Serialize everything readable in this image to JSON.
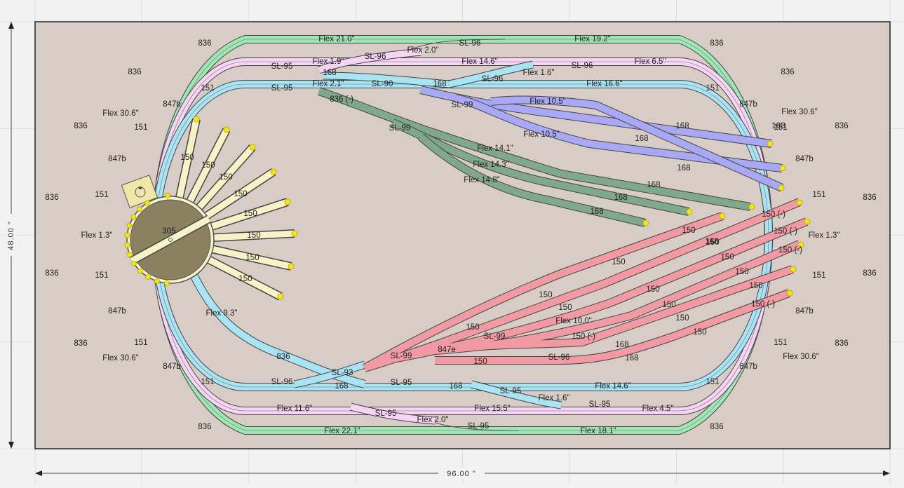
{
  "dimensions": {
    "width": "96.00 \"",
    "height": "48.00 \""
  },
  "colors": {
    "background": "#f2f2f2",
    "gridline": "#dcdcdc",
    "board": "#d8ccc6",
    "outer_loop": "#9ee6b3",
    "middle_loop": "#f7d4f3",
    "inner_loop": "#a9e4f4",
    "blue_yard": "#a8a8f4",
    "green_yard": "#7fa88d",
    "red_yard": "#f29aa4",
    "turntable_tracks": "#f6f3c6",
    "turntable": "#8b8060",
    "track_end": "#f2e51a"
  },
  "labels": {
    "outer_top": [
      "836",
      "Flex 21.0\"",
      "SL-96",
      "Flex 19.2\"",
      "836"
    ],
    "outer_left": [
      "836",
      "836",
      "836",
      "836"
    ],
    "outer_right": [
      "836",
      "836",
      "836",
      "836"
    ],
    "outer_bottom": [
      "836",
      "Flex 22.1\"",
      "SL-95",
      "Flex 18.1\"",
      "836"
    ],
    "middle_top": [
      "836",
      "SL-96",
      "Flex 2.0\"",
      "Flex 1.9\"",
      "SL-95",
      "168",
      "Flex 14.6\"",
      "Flex 1.6\"",
      "SL-96",
      "Flex 6.5\"",
      "836"
    ],
    "middle_sides": [
      "Flex 30.6\"",
      "Flex 30.6\"",
      "Flex 30.6\"",
      "Flex 30.6\""
    ],
    "middle_bottom": [
      "Flex 11.6\"",
      "SL-95",
      "Flex 2.0\"",
      "Flex 15.5\"",
      "Flex 1.6\"",
      "SL-95",
      "Flex 4.5\""
    ],
    "inner_top": [
      "151",
      "SL-95",
      "Flex 2.1\"",
      "SL-90",
      "168",
      "SL-96",
      "Flex 16.6\"",
      "151"
    ],
    "inner_left": [
      "847b",
      "151",
      "847b",
      "151",
      "Flex 1.3\"",
      "151",
      "847b",
      "151",
      "847b"
    ],
    "inner_right": [
      "847b",
      "151",
      "847b",
      "151",
      "Flex 1.3\"",
      "151",
      "847b",
      "151",
      "847b"
    ],
    "inner_bottom": [
      "151",
      "SL-96",
      "SL-93",
      "168",
      "SL-95",
      "168",
      "SL-95",
      "Flex 14.6\"",
      "151",
      "836",
      "Flex 9.3\""
    ],
    "blue_yard": [
      "SL-99",
      "Flex 10.5\"",
      "Flex 10.5\"",
      "168",
      "168",
      "168",
      "168"
    ],
    "green_yard": [
      "836 (-)",
      "SL-99",
      "Flex 14.1\"",
      "Flex 14.3\"",
      "Flex 14.8\"",
      "168",
      "168",
      "168"
    ],
    "red_yard": [
      "SL-99",
      "847e",
      "150",
      "SL-99",
      "SL-96",
      "Flex 10.0\"",
      "150",
      "150",
      "150",
      "150",
      "150",
      "150",
      "150",
      "150",
      "150",
      "150",
      "150",
      "150",
      "150",
      "150 (-)",
      "150 (-)",
      "150 (-)",
      "150 (-)",
      "150 (-)",
      "168",
      "168",
      "168"
    ],
    "turntable_spurs": [
      "150",
      "150",
      "150",
      "150",
      "150",
      "150",
      "150",
      "150"
    ],
    "turntable": "305"
  }
}
